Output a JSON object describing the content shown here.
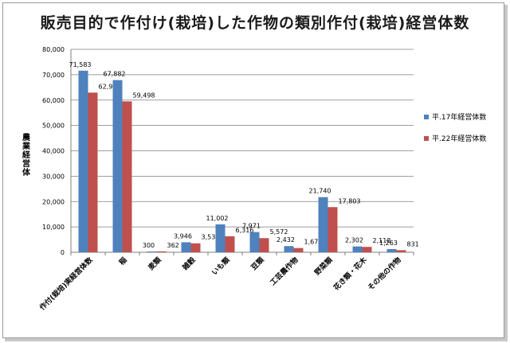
{
  "title": "販売目的で作付け(栽培)した作物の類別作付(栽培)経営体数",
  "colors": {
    "series1": "#4f81bd",
    "series2": "#c0504d",
    "grid": "#7f7f7f"
  },
  "chart_data": {
    "type": "bar",
    "title": "販売目的で作付け(栽培)した作物の類別作付(栽培)経営体数",
    "ylabel": "農業経営体",
    "ylim": [
      0,
      80000
    ],
    "yticks": [
      "0",
      "10,000",
      "20,000",
      "30,000",
      "40,000",
      "50,000",
      "60,000",
      "70,000",
      "80,000"
    ],
    "grid": true,
    "legend": "right",
    "categories": [
      "作付(栽培)実経営体数",
      "稲",
      "麦類",
      "雑穀",
      "いも類",
      "豆類",
      "工芸農作物",
      "野菜類",
      "花き類・花木",
      "その他の作物"
    ],
    "series": [
      {
        "name": "平.17年経営体数",
        "values": [
          71583,
          67882,
          300,
          3946,
          11002,
          7971,
          2432,
          21740,
          2302,
          1263
        ],
        "labels": [
          "71,583",
          "67,882",
          "300",
          "3,946",
          "11,002",
          "7,971",
          "2,432",
          "21,740",
          "2,302",
          "1,263"
        ]
      },
      {
        "name": "平.22年経営体数",
        "values": [
          62948,
          59498,
          362,
          3536,
          6316,
          5572,
          1676,
          17803,
          2118,
          831
        ],
        "labels": [
          "62,948",
          "59,498",
          "362",
          "3,536",
          "6,316",
          "5,572",
          "1,676",
          "17,803",
          "2,118",
          "831"
        ]
      }
    ]
  }
}
